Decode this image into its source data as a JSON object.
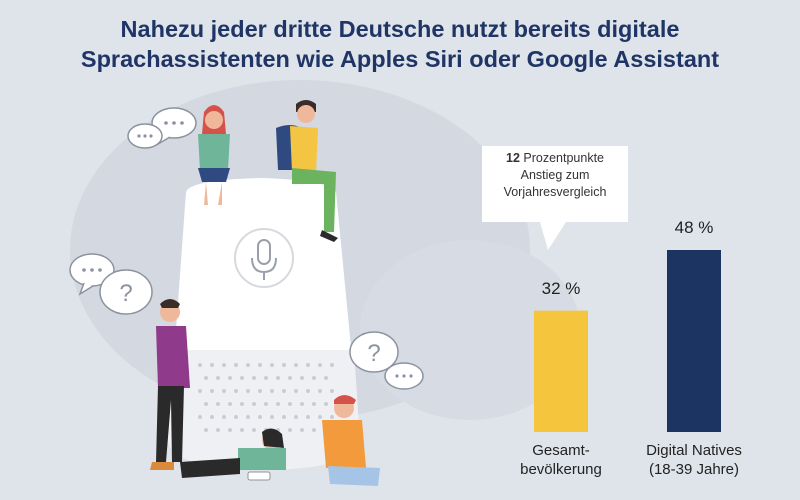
{
  "title": {
    "line1": "Nahezu jeder dritte Deutsche nutzt bereits digitale",
    "line2": "Sprachassistenten wie Apples Siri oder Google Assistant"
  },
  "callout": {
    "strong": "12",
    "rest": "Prozentpunkte",
    "line2": "Anstieg zum",
    "line3": "Vorjahresvergleich"
  },
  "colors": {
    "background": "#dfe3ea",
    "title": "#1f3566",
    "bar_total": "#f5c53d",
    "bar_natives": "#1c3462"
  },
  "chart_data": {
    "type": "bar",
    "categories": [
      [
        "Gesamt-",
        "bevölkerung"
      ],
      [
        "Digital Natives",
        "(18-39 Jahre)"
      ]
    ],
    "values": [
      32,
      48
    ],
    "value_labels": [
      "32 %",
      "48 %"
    ],
    "unit": "%",
    "ylim": [
      0,
      48
    ],
    "grid": false,
    "legend": "none"
  },
  "illustration": {
    "icons": [
      "smart-speaker-icon",
      "microphone-icon",
      "speech-bubble-icon",
      "question-bubble-icon",
      "person-icon"
    ]
  }
}
